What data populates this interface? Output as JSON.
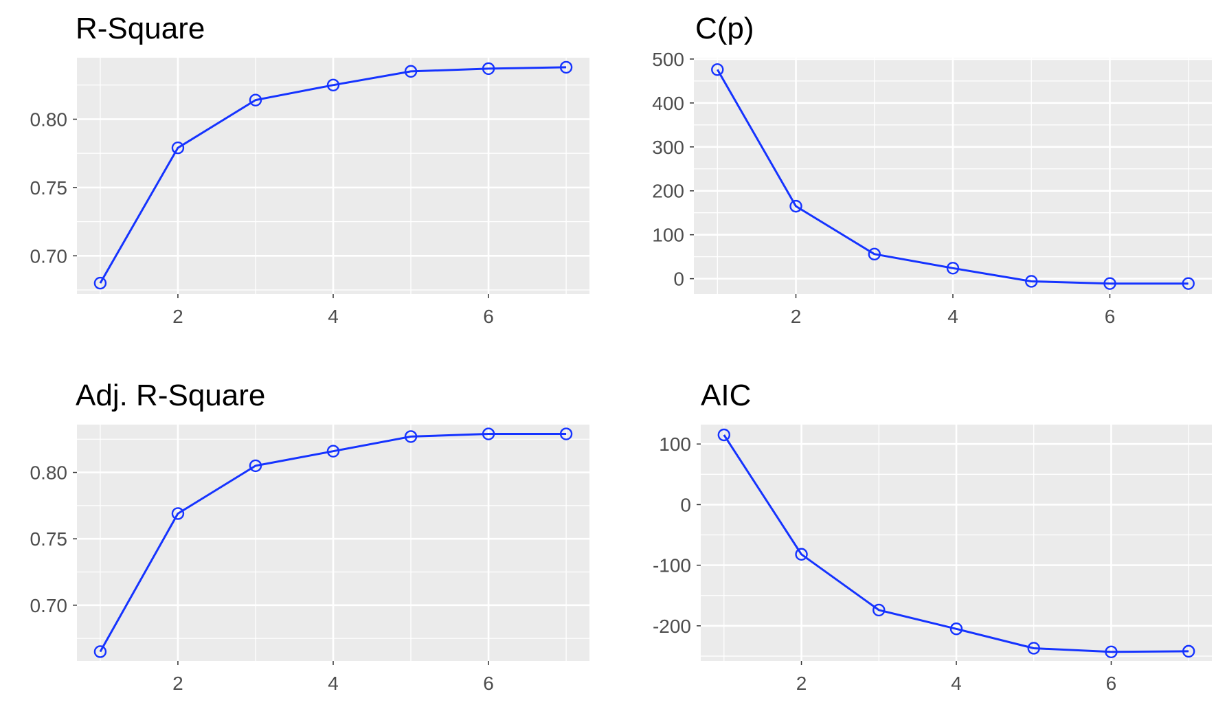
{
  "chart_data": [
    {
      "type": "line",
      "title": "R-Square",
      "xlabel": "",
      "ylabel": "",
      "x": [
        1,
        2,
        3,
        4,
        5,
        6,
        7
      ],
      "values": [
        0.68,
        0.779,
        0.814,
        0.825,
        0.835,
        0.837,
        0.838
      ],
      "xlim": [
        0.7,
        7.3
      ],
      "ylim": [
        0.672,
        0.845
      ],
      "xticks": [
        2,
        4,
        6
      ],
      "xtick_labels": [
        "2",
        "4",
        "6"
      ],
      "yticks": [
        0.7,
        0.75,
        0.8
      ],
      "ytick_labels": [
        "0.70",
        "0.75",
        "0.80"
      ],
      "grid": true
    },
    {
      "type": "line",
      "title": "C(p)",
      "xlabel": "",
      "ylabel": "",
      "x": [
        1,
        2,
        3,
        4,
        5,
        6,
        7
      ],
      "values": [
        476,
        165,
        56,
        24,
        -6,
        -11,
        -11
      ],
      "xlim": [
        0.7,
        7.3
      ],
      "ylim": [
        -35,
        503
      ],
      "xticks": [
        2,
        4,
        6
      ],
      "xtick_labels": [
        "2",
        "4",
        "6"
      ],
      "yticks": [
        0,
        100,
        200,
        300,
        400,
        500
      ],
      "ytick_labels": [
        "0",
        "100",
        "200",
        "300",
        "400",
        "500"
      ],
      "grid": true
    },
    {
      "type": "line",
      "title": "Adj. R-Square",
      "xlabel": "",
      "ylabel": "",
      "x": [
        1,
        2,
        3,
        4,
        5,
        6,
        7
      ],
      "values": [
        0.665,
        0.769,
        0.805,
        0.816,
        0.827,
        0.829,
        0.829
      ],
      "xlim": [
        0.7,
        7.3
      ],
      "ylim": [
        0.658,
        0.836
      ],
      "xticks": [
        2,
        4,
        6
      ],
      "xtick_labels": [
        "2",
        "4",
        "6"
      ],
      "yticks": [
        0.7,
        0.75,
        0.8
      ],
      "ytick_labels": [
        "0.70",
        "0.75",
        "0.80"
      ],
      "grid": true
    },
    {
      "type": "line",
      "title": "AIC",
      "xlabel": "",
      "ylabel": "",
      "x": [
        1,
        2,
        3,
        4,
        5,
        6,
        7
      ],
      "values": [
        115,
        -82,
        -174,
        -205,
        -237,
        -243,
        -242
      ],
      "xlim": [
        0.7,
        7.3
      ],
      "ylim": [
        -258,
        132
      ],
      "xticks": [
        2,
        4,
        6
      ],
      "xtick_labels": [
        "2",
        "4",
        "6"
      ],
      "yticks": [
        -200,
        -100,
        0,
        100
      ],
      "ytick_labels": [
        "-200",
        "-100",
        "0",
        "100"
      ],
      "grid": true
    }
  ],
  "colors": {
    "line": "#1533ff",
    "panel_background": "#ebebeb",
    "grid": "#ffffff",
    "tick_text": "#4d4d4d",
    "title_text": "#000000"
  }
}
